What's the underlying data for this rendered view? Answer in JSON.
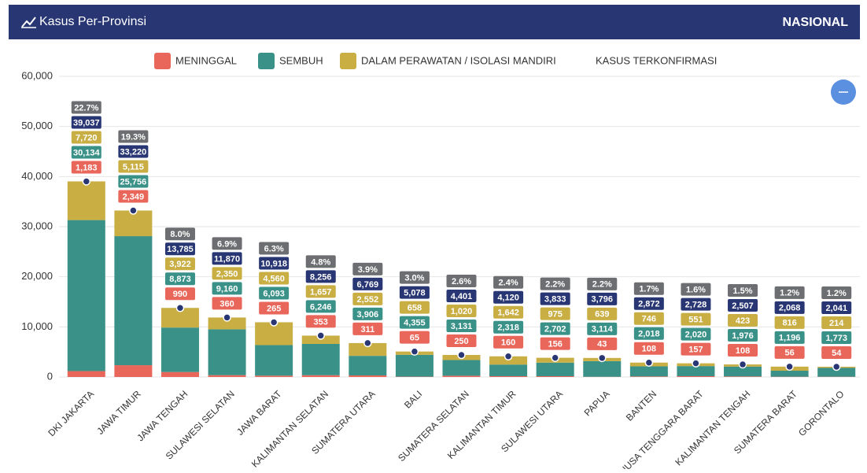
{
  "header": {
    "title": "Kasus Per-Provinsi",
    "scope": "NASIONAL"
  },
  "chart_data": {
    "type": "stacked-bar",
    "categories": [
      "DKI JAKARTA",
      "JAWA TIMUR",
      "JAWA TENGAH",
      "SULAWESI SELATAN",
      "JAWA BARAT",
      "KALIMANTAN SELATAN",
      "SUMATERA UTARA",
      "BALI",
      "SUMATERA SELATAN",
      "KALIMANTAN TIMUR",
      "SULAWESI UTARA",
      "PAPUA",
      "BANTEN",
      "NUSA TENGGARA BARAT",
      "KALIMANTAN TENGAH",
      "SUMATERA BARAT",
      "GORONTALO"
    ],
    "series": [
      {
        "name": "MENINGGAL",
        "color": "#e8675a",
        "kind": "bar",
        "values": [
          1183,
          2349,
          990,
          360,
          265,
          353,
          311,
          65,
          250,
          160,
          156,
          43,
          108,
          157,
          108,
          56,
          54
        ],
        "value_labels": [
          "1,183",
          "2,349",
          "990",
          "360",
          "265",
          "353",
          "311",
          "65",
          "250",
          "160",
          "156",
          "43",
          "108",
          "157",
          "108",
          "56",
          "54"
        ]
      },
      {
        "name": "SEMBUH",
        "color": "#3a9188",
        "kind": "bar",
        "values": [
          30134,
          25756,
          8873,
          9160,
          6093,
          6246,
          3906,
          4355,
          3131,
          2318,
          2702,
          3114,
          2018,
          2020,
          1976,
          1196,
          1773
        ],
        "value_labels": [
          "30,134",
          "25,756",
          "8,873",
          "9,160",
          "6,093",
          "6,246",
          "3,906",
          "4,355",
          "3,131",
          "2,318",
          "2,702",
          "3,114",
          "2,018",
          "2,020",
          "1,976",
          "1,196",
          "1,773"
        ]
      },
      {
        "name": "DALAM PERAWATAN / ISOLASI MANDIRI",
        "color": "#c9ae44",
        "kind": "bar",
        "values": [
          7720,
          5115,
          3922,
          2350,
          4560,
          1657,
          2552,
          658,
          1020,
          1642,
          975,
          639,
          746,
          551,
          423,
          816,
          214
        ],
        "value_labels": [
          "7,720",
          "5,115",
          "3,922",
          "2,350",
          "4,560",
          "1,657",
          "2,552",
          "658",
          "1,020",
          "1,642",
          "975",
          "639",
          "746",
          "551",
          "423",
          "816",
          "214"
        ]
      },
      {
        "name": "KASUS TERKONFIRMASI",
        "color": "#283673",
        "kind": "dot",
        "values": [
          39037,
          33220,
          13785,
          11870,
          10918,
          8256,
          6769,
          5078,
          4401,
          4120,
          3833,
          3796,
          2872,
          2728,
          2507,
          2068,
          2041
        ],
        "value_labels": [
          "39,037",
          "33,220",
          "13,785",
          "11,870",
          "10,918",
          "8,256",
          "6,769",
          "5,078",
          "4,401",
          "4,120",
          "3,833",
          "3,796",
          "2,872",
          "2,728",
          "2,507",
          "2,068",
          "2,041"
        ]
      }
    ],
    "share": {
      "color": "#6d6e71",
      "values": [
        22.7,
        19.3,
        8.0,
        6.9,
        6.3,
        4.8,
        3.9,
        3.0,
        2.6,
        2.4,
        2.2,
        2.2,
        1.7,
        1.6,
        1.5,
        1.2,
        1.2
      ],
      "value_labels": [
        "22.7%",
        "19.3%",
        "8.0%",
        "6.9%",
        "6.3%",
        "4.8%",
        "3.9%",
        "3.0%",
        "2.6%",
        "2.4%",
        "2.2%",
        "2.2%",
        "1.7%",
        "1.6%",
        "1.5%",
        "1.2%",
        "1.2%"
      ]
    },
    "ylim": [
      0,
      60000
    ],
    "yticks": [
      0,
      {
        "value": 10000,
        "label": "10,000"
      },
      {
        "value": 20000,
        "label": "20,000"
      },
      {
        "value": 30000,
        "label": "30,000"
      },
      {
        "value": 40000,
        "label": "40,000"
      },
      {
        "value": 50000,
        "label": "50,000"
      },
      {
        "value": 60000,
        "label": "60,000"
      }
    ],
    "grid": true
  }
}
